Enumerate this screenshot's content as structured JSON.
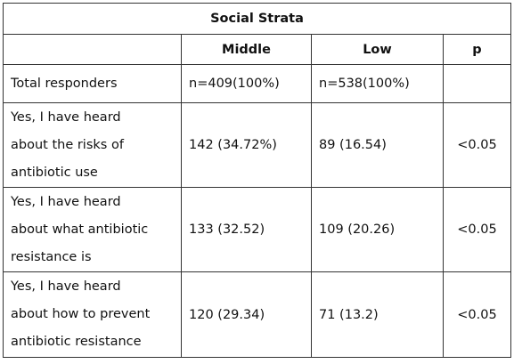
{
  "table": {
    "title": "Social Strata",
    "columns": [
      "Middle",
      "Low",
      "p"
    ],
    "rows": [
      {
        "label": [
          "Total responders"
        ],
        "cells": [
          "n=409(100%)",
          "n=538(100%)"
        ]
      },
      {
        "label": [
          "Yes, I have heard",
          "about the risks of",
          "antibiotic use"
        ],
        "cells": [
          "142 (34.72%)",
          "89 (16.54)",
          "<0.05"
        ]
      },
      {
        "label": [
          "Yes, I have heard",
          "about what antibiotic",
          "resistance is"
        ],
        "cells": [
          "133 (32.52)",
          "109 (20.26)",
          "<0.05"
        ]
      },
      {
        "label": [
          "Yes, I have heard",
          "about how to prevent",
          "antibiotic resistance"
        ],
        "cells": [
          "120 (29.34)",
          "71 (13.2)",
          "<0.05"
        ]
      }
    ]
  }
}
